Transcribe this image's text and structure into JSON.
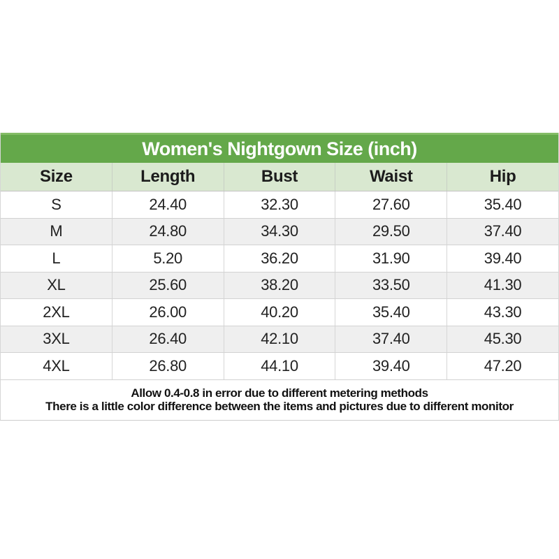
{
  "chart_data": {
    "type": "table",
    "title": "Women's Nightgown Size (inch)",
    "unit": "inch",
    "columns": [
      "Size",
      "Length",
      "Bust",
      "Waist",
      "Hip"
    ],
    "rows": [
      [
        "S",
        "24.40",
        "32.30",
        "27.60",
        "35.40"
      ],
      [
        "M",
        "24.80",
        "34.30",
        "29.50",
        "37.40"
      ],
      [
        "L",
        "5.20",
        "36.20",
        "31.90",
        "39.40"
      ],
      [
        "XL",
        "25.60",
        "38.20",
        "33.50",
        "41.30"
      ],
      [
        "2XL",
        "26.00",
        "40.20",
        "35.40",
        "43.30"
      ],
      [
        "3XL",
        "26.40",
        "42.10",
        "37.40",
        "45.30"
      ],
      [
        "4XL",
        "26.80",
        "44.10",
        "39.40",
        "47.20"
      ]
    ],
    "notes": [
      "Allow 0.4-0.8 in error due to different metering methods",
      "There is a little color difference between the items and pictures due to different monitor"
    ],
    "layout_hints": {
      "title_band_color": "#64a84a",
      "title_band_top_edge_color": "#85bd67",
      "header_row_color": "#d9e8d0",
      "zebra_row_color": "#efefef",
      "row_order_shading": "odd rows white, even rows gray"
    }
  }
}
